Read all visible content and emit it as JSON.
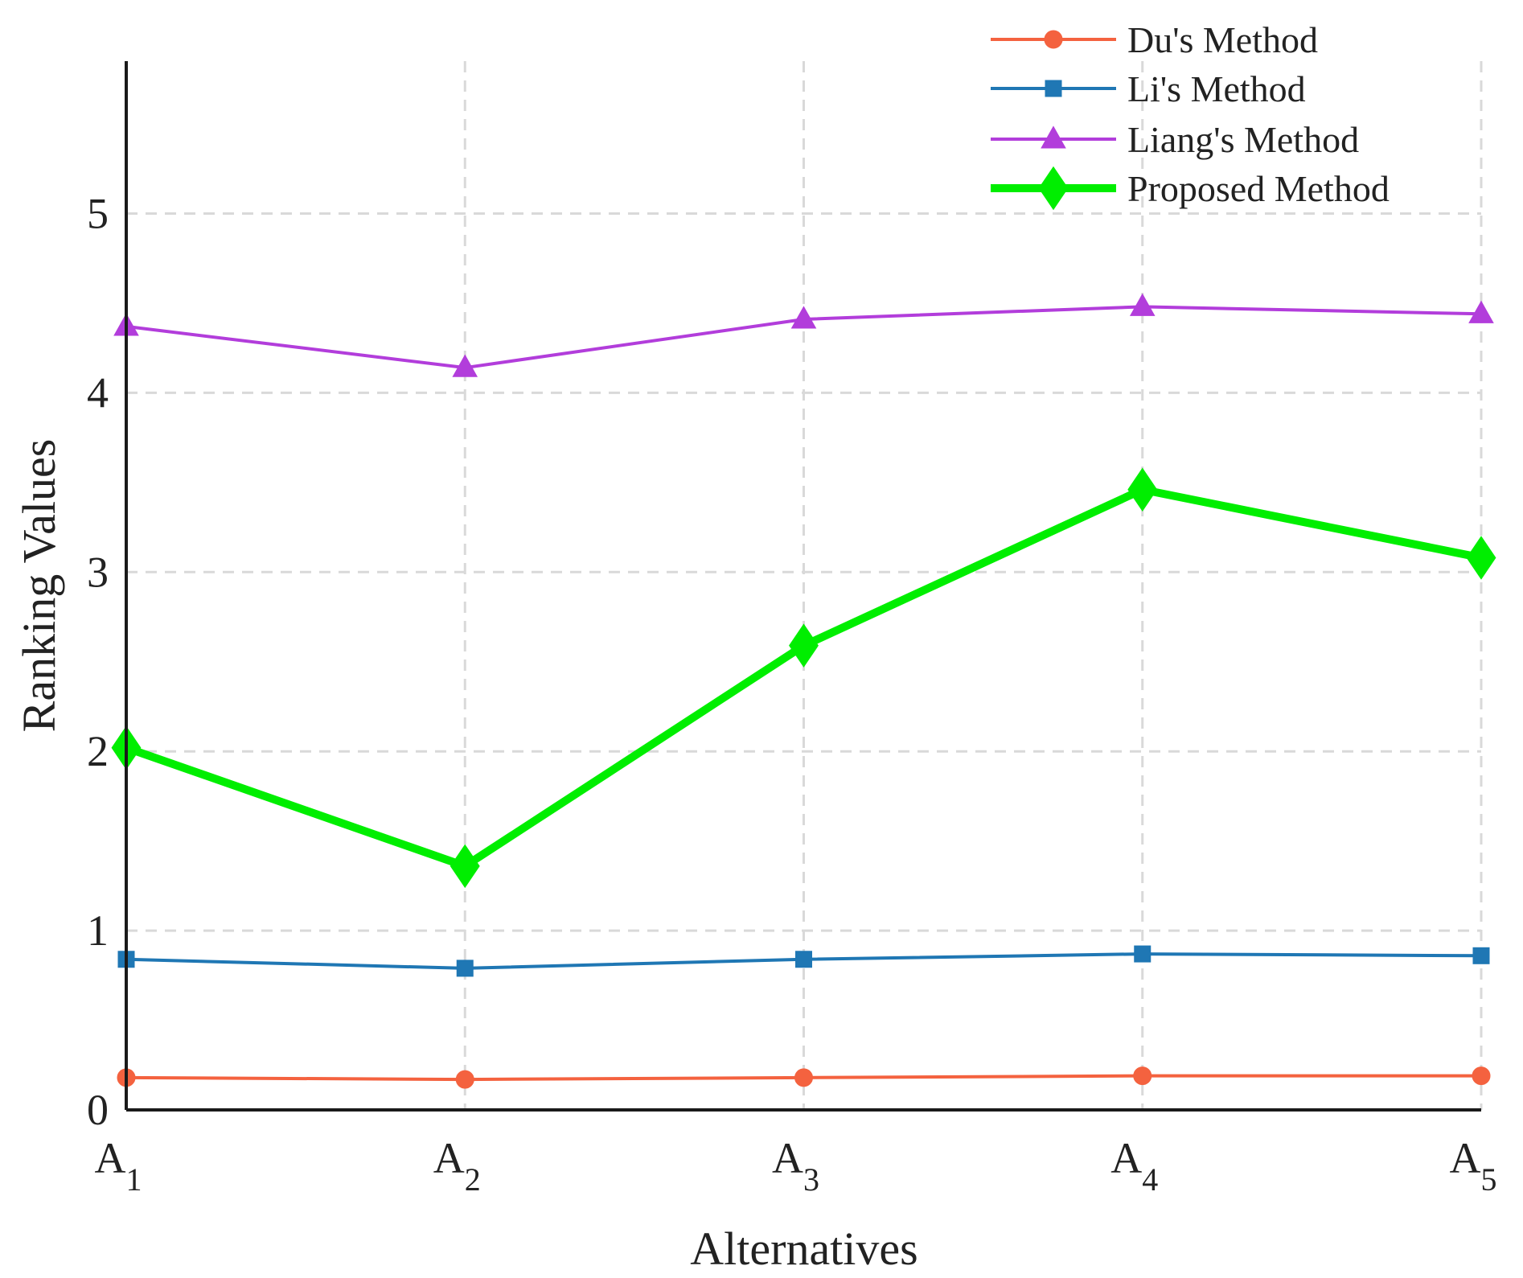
{
  "chart_data": {
    "type": "line",
    "title": "",
    "xlabel": "Alternatives",
    "ylabel": "Ranking Values",
    "categories": [
      {
        "base": "A",
        "sub": "1"
      },
      {
        "base": "A",
        "sub": "2"
      },
      {
        "base": "A",
        "sub": "3"
      },
      {
        "base": "A",
        "sub": "4"
      },
      {
        "base": "A",
        "sub": "5"
      }
    ],
    "yticks": [
      0,
      1,
      2,
      3,
      4,
      5
    ],
    "ylim": [
      0,
      5.85
    ],
    "grid": true,
    "legend_position": "top-right",
    "series": [
      {
        "name": "Du's Method",
        "color": "#f4623f",
        "marker": "circle",
        "values": [
          0.18,
          0.17,
          0.18,
          0.19,
          0.19
        ]
      },
      {
        "name": "Li's Method",
        "color": "#1f77b4",
        "marker": "square",
        "values": [
          0.84,
          0.79,
          0.84,
          0.87,
          0.86
        ]
      },
      {
        "name": "Liang's Method",
        "color": "#b23ddb",
        "marker": "triangle",
        "values": [
          4.37,
          4.14,
          4.41,
          4.48,
          4.44
        ]
      },
      {
        "name": "Proposed Method",
        "color": "#00ee00",
        "marker": "diamond",
        "values": [
          2.02,
          1.36,
          2.59,
          3.46,
          3.08
        ]
      }
    ]
  }
}
